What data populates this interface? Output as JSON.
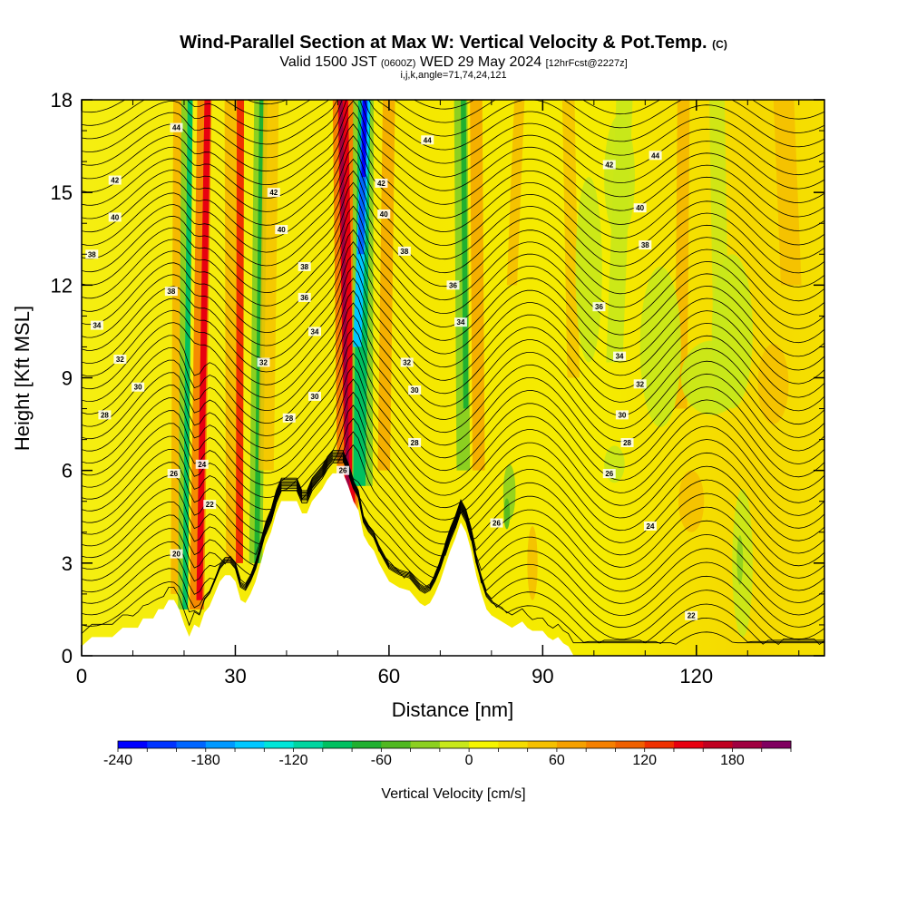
{
  "title": {
    "main": "Wind-Parallel Section at Max W: Vertical Velocity & Pot.Temp.",
    "copyright": "(C)"
  },
  "subtitle": {
    "valid": "Valid 1500 JST",
    "utc": "(0600Z)",
    "date": "WED 29 May 2024",
    "forecast": "[12hrFcst@2227z]"
  },
  "params": "i,j,k,angle=71,74,24,121",
  "chart_data": {
    "type": "heatmap",
    "xlabel": "Distance [nm]",
    "ylabel": "Height [Kft MSL]",
    "xlim": [
      0,
      145
    ],
    "ylim": [
      0,
      18
    ],
    "xticks": [
      0,
      30,
      60,
      90,
      120
    ],
    "yticks": [
      0,
      3,
      6,
      9,
      12,
      15,
      18
    ],
    "colorbar": {
      "label": "Vertical Velocity [cm/s]",
      "min": -240,
      "max": 210,
      "step": 20,
      "tick_values": [
        -240,
        -180,
        -120,
        -60,
        0,
        60,
        120,
        180
      ],
      "colors": [
        "#0000ff",
        "#0033ff",
        "#0066ff",
        "#0099ff",
        "#00c8ff",
        "#00e5d8",
        "#00d5a0",
        "#00c060",
        "#20b030",
        "#50b820",
        "#8cd020",
        "#c8e81a",
        "#f5f500",
        "#f5dc00",
        "#f5c000",
        "#f5a000",
        "#f58000",
        "#f06000",
        "#f03000",
        "#e80010",
        "#c00020",
        "#a00040",
        "#800060"
      ]
    },
    "contour_labels": [
      {
        "x": 18.5,
        "y": 17.1,
        "text": "44"
      },
      {
        "x": 6.5,
        "y": 15.4,
        "text": "42"
      },
      {
        "x": 6.5,
        "y": 14.2,
        "text": "40"
      },
      {
        "x": 2,
        "y": 13.0,
        "text": "38"
      },
      {
        "x": 17.5,
        "y": 11.8,
        "text": "38"
      },
      {
        "x": 3,
        "y": 10.7,
        "text": "34"
      },
      {
        "x": 7.5,
        "y": 9.6,
        "text": "32"
      },
      {
        "x": 11,
        "y": 8.7,
        "text": "30"
      },
      {
        "x": 4.5,
        "y": 7.8,
        "text": "28"
      },
      {
        "x": 18,
        "y": 5.9,
        "text": "26"
      },
      {
        "x": 23.5,
        "y": 6.2,
        "text": "24"
      },
      {
        "x": 25,
        "y": 4.9,
        "text": "22"
      },
      {
        "x": 18.5,
        "y": 3.3,
        "text": "20"
      },
      {
        "x": 37.5,
        "y": 15.0,
        "text": "42"
      },
      {
        "x": 39,
        "y": 13.8,
        "text": "40"
      },
      {
        "x": 43.5,
        "y": 12.6,
        "text": "38"
      },
      {
        "x": 43.5,
        "y": 11.6,
        "text": "36"
      },
      {
        "x": 45.5,
        "y": 10.5,
        "text": "34"
      },
      {
        "x": 35.5,
        "y": 9.5,
        "text": "32"
      },
      {
        "x": 45.5,
        "y": 8.4,
        "text": "30"
      },
      {
        "x": 40.5,
        "y": 7.7,
        "text": "28"
      },
      {
        "x": 51,
        "y": 6.0,
        "text": "26"
      },
      {
        "x": 67.5,
        "y": 16.7,
        "text": "44"
      },
      {
        "x": 58.5,
        "y": 15.3,
        "text": "42"
      },
      {
        "x": 59,
        "y": 14.3,
        "text": "40"
      },
      {
        "x": 63,
        "y": 13.1,
        "text": "38"
      },
      {
        "x": 72.5,
        "y": 12.0,
        "text": "36"
      },
      {
        "x": 74,
        "y": 10.8,
        "text": "34"
      },
      {
        "x": 63.5,
        "y": 9.5,
        "text": "32"
      },
      {
        "x": 65,
        "y": 8.6,
        "text": "30"
      },
      {
        "x": 65,
        "y": 6.9,
        "text": "28"
      },
      {
        "x": 81,
        "y": 4.3,
        "text": "26"
      },
      {
        "x": 103,
        "y": 15.9,
        "text": "42"
      },
      {
        "x": 112,
        "y": 16.2,
        "text": "44"
      },
      {
        "x": 109,
        "y": 14.5,
        "text": "40"
      },
      {
        "x": 110,
        "y": 13.3,
        "text": "38"
      },
      {
        "x": 101,
        "y": 11.3,
        "text": "36"
      },
      {
        "x": 105,
        "y": 9.7,
        "text": "34"
      },
      {
        "x": 109,
        "y": 8.8,
        "text": "32"
      },
      {
        "x": 105.5,
        "y": 7.8,
        "text": "30"
      },
      {
        "x": 106.5,
        "y": 6.9,
        "text": "28"
      },
      {
        "x": 103,
        "y": 5.9,
        "text": "26"
      },
      {
        "x": 111,
        "y": 4.2,
        "text": "24"
      },
      {
        "x": 119,
        "y": 1.3,
        "text": "22"
      }
    ],
    "terrain_profile": [
      [
        0,
        0.3
      ],
      [
        2,
        0.6
      ],
      [
        6,
        0.6
      ],
      [
        8,
        0.9
      ],
      [
        11,
        0.9
      ],
      [
        12,
        1.2
      ],
      [
        14,
        1.2
      ],
      [
        15,
        1.5
      ],
      [
        16,
        1.5
      ],
      [
        17,
        1.8
      ],
      [
        18,
        1.8
      ],
      [
        19,
        1.5
      ],
      [
        20,
        1.0
      ],
      [
        21,
        0.6
      ],
      [
        22,
        1.0
      ],
      [
        23,
        0.9
      ],
      [
        24,
        1.4
      ],
      [
        25,
        1.6
      ],
      [
        26,
        2.0
      ],
      [
        27,
        2.4
      ],
      [
        28,
        2.6
      ],
      [
        29,
        2.6
      ],
      [
        30,
        2.4
      ],
      [
        31,
        1.8
      ],
      [
        32,
        1.7
      ],
      [
        33,
        2.0
      ],
      [
        34,
        2.4
      ],
      [
        35,
        3.0
      ],
      [
        36,
        3.6
      ],
      [
        37,
        4.0
      ],
      [
        38,
        4.6
      ],
      [
        39,
        5.0
      ],
      [
        42,
        5.0
      ],
      [
        43,
        4.6
      ],
      [
        44,
        4.6
      ],
      [
        45,
        5.0
      ],
      [
        47,
        5.4
      ],
      [
        48,
        5.7
      ],
      [
        49,
        5.9
      ],
      [
        51,
        5.9
      ],
      [
        52,
        5.5
      ],
      [
        53,
        5.0
      ],
      [
        54,
        4.7
      ],
      [
        55,
        3.9
      ],
      [
        56,
        3.6
      ],
      [
        57,
        3.4
      ],
      [
        58,
        3.0
      ],
      [
        59,
        2.7
      ],
      [
        60,
        2.4
      ],
      [
        62,
        2.2
      ],
      [
        64,
        2.1
      ],
      [
        65,
        1.9
      ],
      [
        66,
        1.7
      ],
      [
        67,
        1.6
      ],
      [
        68,
        1.7
      ],
      [
        69,
        2.0
      ],
      [
        70,
        2.4
      ],
      [
        71,
        2.9
      ],
      [
        72,
        3.4
      ],
      [
        73,
        3.8
      ],
      [
        74,
        4.3
      ],
      [
        75,
        4.0
      ],
      [
        76,
        3.4
      ],
      [
        77,
        2.6
      ],
      [
        78,
        2.0
      ],
      [
        79,
        1.5
      ],
      [
        80,
        1.3
      ],
      [
        82,
        1.1
      ],
      [
        84,
        0.9
      ],
      [
        85,
        1.0
      ],
      [
        86,
        1.1
      ],
      [
        87,
        0.9
      ],
      [
        88,
        0.8
      ],
      [
        90,
        0.8
      ],
      [
        91,
        0.6
      ],
      [
        92,
        0.5
      ],
      [
        93,
        0.6
      ],
      [
        94,
        0.4
      ],
      [
        95,
        0.3
      ],
      [
        96,
        0
      ],
      [
        145,
        0
      ]
    ]
  }
}
